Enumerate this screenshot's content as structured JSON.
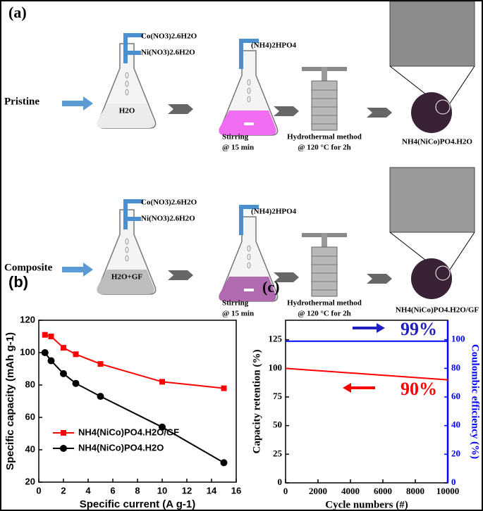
{
  "panel_a": {
    "label": "(a)",
    "rows": [
      {
        "name": "Pristine",
        "reagents": [
          "Co(NO3)2.6H2O",
          "Ni(NO3)2.6H2O"
        ],
        "flask": "H2O",
        "additive": "(NH4)2HPO4",
        "stirring": [
          "Stirring",
          "@ 15 min"
        ],
        "hydrothermal": [
          "Hydrothermal method",
          "@ 120 °C for 2h"
        ],
        "product": "NH4(NiCo)PO4.H2O"
      },
      {
        "name": "Composite",
        "reagents": [
          "Co(NO3)2.6H2O",
          "Ni(NO3)2.6H2O"
        ],
        "flask": "H2O+GF",
        "additive": "(NH4)2HPO4",
        "stirring": [
          "Stirring",
          "@ 15 min"
        ],
        "hydrothermal": [
          "Hydrothermal method",
          "@ 120 °C for 2h"
        ],
        "product": "NH4(NiCo)PO4.H2O/GF"
      }
    ]
  },
  "chart_data": [
    {
      "type": "line",
      "title": "(b)",
      "xlabel": "Specific current (A g-1)",
      "ylabel": "Specific capacity (mAh g-1)",
      "x": [
        0.5,
        1,
        2,
        3,
        5,
        10,
        15
      ],
      "series": [
        {
          "name": "NH4(NiCo)PO4.H2O/GF",
          "color": "#ff0000",
          "marker": "square",
          "values": [
            111,
            110,
            103,
            99,
            93,
            82,
            78
          ]
        },
        {
          "name": "NH4(NiCo)PO4.H2O",
          "color": "#000000",
          "marker": "circle",
          "values": [
            100,
            95,
            87,
            81,
            73,
            54,
            32
          ]
        }
      ],
      "xlim": [
        0,
        16
      ],
      "xticks": [
        0,
        2,
        4,
        6,
        8,
        10,
        12,
        14,
        16
      ],
      "ylim": [
        20,
        120
      ],
      "yticks": [
        20,
        40,
        60,
        80,
        100,
        120
      ],
      "legend": "lower left"
    },
    {
      "type": "line",
      "title": "(c)",
      "xlabel": "Cycle numbers (#)",
      "ylabel": "Capacity retention (%)",
      "y2label": "Coulombic efficiency (%)",
      "x": [
        0,
        2000,
        4000,
        6000,
        8000,
        10000
      ],
      "series": [
        {
          "name": "Capacity retention",
          "color": "#ff0000",
          "marker": "none",
          "values": [
            100,
            98,
            96,
            94,
            92,
            90
          ]
        },
        {
          "name": "Coulombic efficiency",
          "color": "#0000ff",
          "marker": "none",
          "axis": "y2",
          "values": [
            99,
            99,
            99,
            99,
            99,
            99
          ]
        }
      ],
      "xlim": [
        0,
        10000
      ],
      "xticks": [
        0,
        2000,
        4000,
        6000,
        8000,
        10000
      ],
      "ylim": [
        0,
        142
      ],
      "yticks": [
        0,
        25,
        50,
        75,
        100,
        125
      ],
      "y2lim": [
        0,
        113.6
      ],
      "y2ticks": [
        0,
        20,
        40,
        60,
        80,
        100
      ],
      "y2color": "#0000ff",
      "annotations": [
        {
          "text": "99%",
          "color": "#2020c0"
        },
        {
          "text": "90%",
          "color": "#ff0000"
        }
      ]
    }
  ]
}
